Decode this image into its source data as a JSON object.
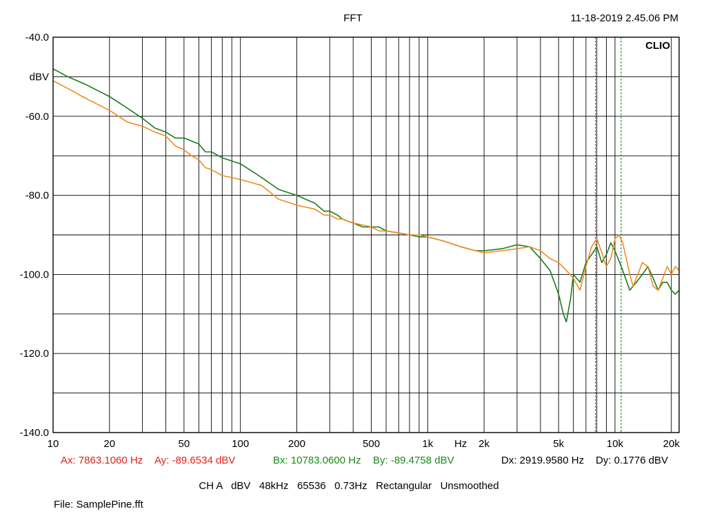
{
  "header": {
    "title": "FFT",
    "timestamp": "11-18-2019 2.45.06 PM",
    "brand": "CLIO"
  },
  "cursors": {
    "a": {
      "x_label": "Ax: 7863.1060 Hz",
      "y_label": "Ay: -89.6534 dBV",
      "color": "#e02020"
    },
    "b": {
      "x_label": "Bx: 10783.0600 Hz",
      "y_label": "By: -89.4758 dBV",
      "color": "#1a8a1a"
    },
    "delta": {
      "x_label": "Dx: 2919.9580 Hz",
      "y_label": "Dy: 0.1776 dBV"
    }
  },
  "settings": "CH A   dBV   48kHz   65536   0.73Hz   Rectangular   Unsmoothed",
  "file_label": "File: SamplePine.fft",
  "chart_data": {
    "type": "line",
    "title": "FFT",
    "xlabel": "Hz",
    "ylabel": "dBV",
    "x_scale": "log",
    "xlim": [
      10,
      22000
    ],
    "ylim": [
      -140,
      -40
    ],
    "grid": true,
    "y_tick_labels": [
      {
        "value": -40,
        "label": "-40.0"
      },
      {
        "value": -50,
        "label": "dBV"
      },
      {
        "value": -60,
        "label": "-60.0"
      },
      {
        "value": -80,
        "label": "-80.0"
      },
      {
        "value": -100,
        "label": "-100.0"
      },
      {
        "value": -120,
        "label": "-120.0"
      },
      {
        "value": -140,
        "label": "-140.0"
      }
    ],
    "x_tick_labels": [
      {
        "value": 10,
        "label": "10"
      },
      {
        "value": 20,
        "label": "20"
      },
      {
        "value": 50,
        "label": "50"
      },
      {
        "value": 100,
        "label": "100"
      },
      {
        "value": 200,
        "label": "200"
      },
      {
        "value": 500,
        "label": "500"
      },
      {
        "value": 1000,
        "label": "1k"
      },
      {
        "value": 1500,
        "label": "Hz"
      },
      {
        "value": 2000,
        "label": "2k"
      },
      {
        "value": 5000,
        "label": "5k"
      },
      {
        "value": 10000,
        "label": "10k"
      },
      {
        "value": 20000,
        "label": "20k"
      }
    ],
    "cursor_a_hz": 7863.106,
    "cursor_b_hz": 10783.06,
    "series": [
      {
        "color": "#1a7a1a",
        "x": [
          10,
          12,
          15,
          20,
          25,
          30,
          35,
          40,
          45,
          50,
          60,
          65,
          70,
          80,
          100,
          130,
          160,
          200,
          250,
          280,
          300,
          330,
          350,
          400,
          450,
          500,
          550,
          600,
          700,
          800,
          900,
          1000,
          1100,
          1200,
          1300,
          1500,
          1800,
          2000,
          2500,
          3000,
          3500,
          4000,
          4500,
          5000,
          5300,
          5500,
          5800,
          6000,
          6500,
          7000,
          7500,
          8000,
          8500,
          9000,
          9500,
          10000,
          11000,
          12000,
          13000,
          14000,
          15000,
          16000,
          17000,
          18000,
          19000,
          20000,
          21000,
          22000
        ],
        "y": [
          -48,
          -50,
          -52,
          -55,
          -58,
          -60.5,
          -63,
          -64,
          -65.5,
          -65.5,
          -67,
          -69,
          -69,
          -70.5,
          -72,
          -75.5,
          -78.5,
          -80,
          -82,
          -84,
          -84,
          -85,
          -86,
          -87,
          -88,
          -88,
          -88,
          -89,
          -89.5,
          -90,
          -90.5,
          -90.5,
          -91,
          -91.5,
          -92,
          -93,
          -94,
          -94,
          -93.5,
          -92.5,
          -93,
          -96,
          -99,
          -105,
          -110,
          -112,
          -106,
          -100,
          -102,
          -97,
          -95,
          -93,
          -97,
          -95,
          -92,
          -94,
          -99,
          -104,
          -102,
          -100,
          -98,
          -101,
          -104,
          -102,
          -102,
          -104,
          -105,
          -104
        ]
      },
      {
        "color": "#f08a1e",
        "x": [
          10,
          12,
          15,
          20,
          25,
          30,
          35,
          40,
          45,
          50,
          55,
          60,
          65,
          70,
          80,
          100,
          130,
          160,
          200,
          250,
          280,
          300,
          330,
          350,
          400,
          450,
          500,
          550,
          600,
          700,
          800,
          900,
          1000,
          1100,
          1200,
          1300,
          1500,
          1800,
          2000,
          2500,
          3000,
          3500,
          4000,
          4500,
          5000,
          5500,
          6000,
          6500,
          7000,
          7500,
          8000,
          8500,
          9000,
          9500,
          10000,
          10500,
          11000,
          12000,
          12500,
          13000,
          14000,
          15000,
          16000,
          17000,
          18000,
          19000,
          20000,
          21000,
          22000
        ],
        "y": [
          -51,
          -53,
          -55.5,
          -58.5,
          -61.5,
          -62.5,
          -64,
          -65,
          -67.5,
          -68.5,
          -70,
          -71,
          -73,
          -73.5,
          -75,
          -76,
          -77.5,
          -81,
          -82.5,
          -83.5,
          -85,
          -85,
          -86,
          -86,
          -87,
          -87.5,
          -88,
          -89,
          -89,
          -89.5,
          -90,
          -90,
          -90.5,
          -91,
          -91.5,
          -92,
          -93,
          -94,
          -94.5,
          -94,
          -93.5,
          -93,
          -94,
          -96,
          -97,
          -99,
          -101,
          -104,
          -98,
          -93,
          -91,
          -94.5,
          -98,
          -96,
          -91,
          -90,
          -92,
          -100,
          -103,
          -101,
          -97,
          -98,
          -103,
          -104,
          -101,
          -98,
          -100,
          -98,
          -99
        ]
      }
    ]
  }
}
